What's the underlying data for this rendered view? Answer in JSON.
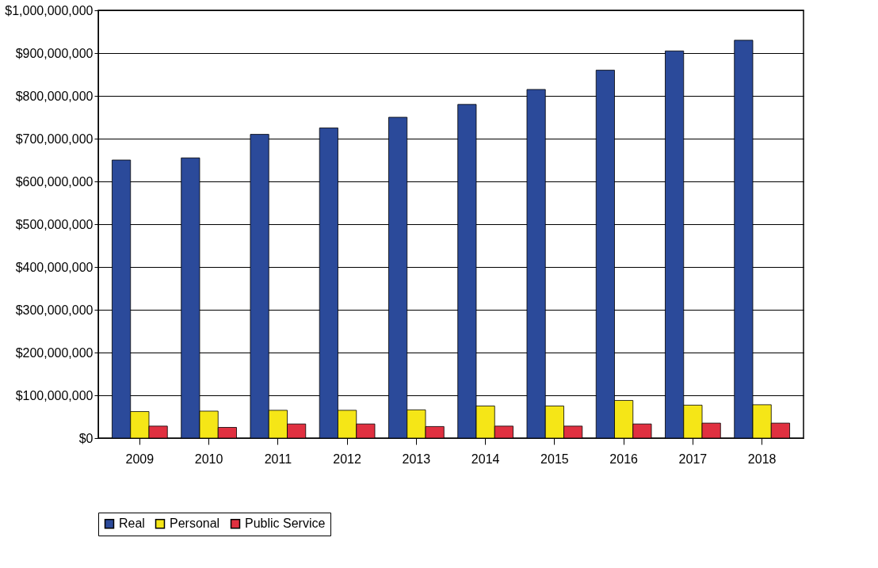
{
  "chart_data": {
    "type": "bar",
    "categories": [
      "2009",
      "2010",
      "2011",
      "2012",
      "2013",
      "2014",
      "2015",
      "2016",
      "2017",
      "2018"
    ],
    "series": [
      {
        "name": "Real",
        "color": "#2b4a9a",
        "values": [
          650000000,
          655000000,
          710000000,
          725000000,
          750000000,
          780000000,
          815000000,
          860000000,
          905000000,
          930000000
        ]
      },
      {
        "name": "Personal",
        "color": "#f5e617",
        "values": [
          62000000,
          63000000,
          65000000,
          65000000,
          66000000,
          75000000,
          75000000,
          88000000,
          77000000,
          78000000
        ]
      },
      {
        "name": "Public Service",
        "color": "#e03040",
        "values": [
          28000000,
          25000000,
          33000000,
          33000000,
          27000000,
          28000000,
          28000000,
          33000000,
          35000000,
          35000000
        ]
      }
    ],
    "ylim": [
      0,
      1000000000
    ],
    "yticks": [
      {
        "value": 0,
        "label": "$0"
      },
      {
        "value": 100000000,
        "label": "$100,000,000"
      },
      {
        "value": 200000000,
        "label": "$200,000,000"
      },
      {
        "value": 300000000,
        "label": "$300,000,000"
      },
      {
        "value": 400000000,
        "label": "$400,000,000"
      },
      {
        "value": 500000000,
        "label": "$500,000,000"
      },
      {
        "value": 600000000,
        "label": "$600,000,000"
      },
      {
        "value": 700000000,
        "label": "$700,000,000"
      },
      {
        "value": 800000000,
        "label": "$800,000,000"
      },
      {
        "value": 900000000,
        "label": "$900,000,000"
      },
      {
        "value": 1000000000,
        "label": "$1,000,000,000"
      }
    ],
    "grid": "y",
    "legend": "bottom"
  }
}
